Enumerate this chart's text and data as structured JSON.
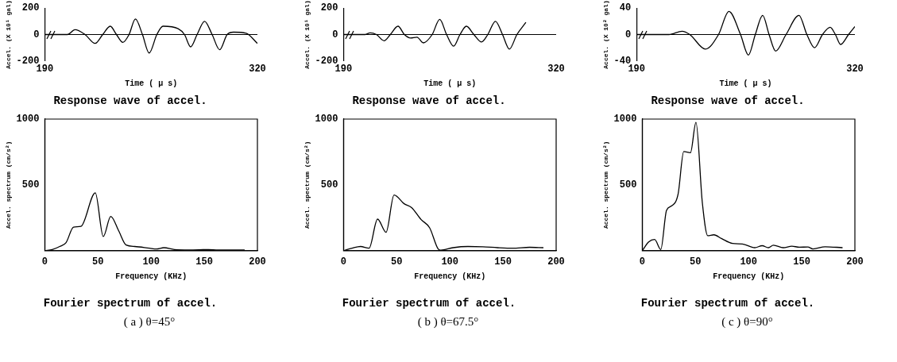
{
  "chart_data": [
    {
      "type": "line",
      "title": "Response wave of accel.",
      "xlabel": "Time ( μ s)",
      "ylabel": "Accel. (X 10¹ gal)",
      "xlim": [
        190,
        320
      ],
      "xticks": [
        190,
        320
      ],
      "ylim": [
        -200,
        200
      ],
      "yticks": [
        200,
        0,
        -200
      ],
      "marker": "none",
      "grid": false,
      "legend": false,
      "ref_lines": [
        {
          "axis": "y",
          "value": 0
        }
      ],
      "series": [
        {
          "color": "#000000",
          "x": [
            190,
            203.8,
            208.5,
            214.6,
            220.8,
            225.4,
            230,
            233.8,
            237.7,
            241.5,
            245.4,
            249.7,
            253.8,
            258.5,
            262.3,
            271.5,
            275.4,
            279.2,
            283.1,
            287.7,
            292.3,
            296.9,
            301.5,
            305.4,
            313.1,
            320
          ],
          "values": [
            0,
            0,
            37,
            0,
            -67,
            0,
            63,
            0,
            -59,
            0,
            118,
            0,
            -140,
            0,
            63,
            44,
            0,
            -93,
            0,
            100,
            0,
            -115,
            0,
            18,
            10,
            -67
          ]
        }
      ]
    },
    {
      "type": "line",
      "title": "Response wave of accel.",
      "xlabel": "Time ( μ s)",
      "ylabel": "Accel. (X 10¹ gal)",
      "xlim": [
        190,
        320
      ],
      "xticks": [
        190,
        320
      ],
      "ylim": [
        -200,
        200
      ],
      "yticks": [
        200,
        0,
        -200
      ],
      "marker": "none",
      "grid": false,
      "legend": false,
      "ref_lines": [
        {
          "axis": "y",
          "value": 0
        }
      ],
      "series": [
        {
          "color": "#000000",
          "x": [
            190,
            203.2,
            206.3,
            210.1,
            214.8,
            218.6,
            223.3,
            227.2,
            231,
            234.9,
            238.8,
            244.2,
            248.8,
            253,
            257.3,
            261.2,
            265.1,
            269.7,
            274.4,
            278.2,
            282.9,
            287.2,
            291.4,
            296,
            301.5
          ],
          "values": [
            0,
            0,
            13,
            0,
            -47,
            0,
            63,
            0,
            -26,
            -20,
            -63,
            0,
            115,
            0,
            -88,
            0,
            63,
            0,
            -56,
            0,
            100,
            0,
            -110,
            0,
            92
          ]
        }
      ]
    },
    {
      "type": "line",
      "title": "Response wave of accel.",
      "xlabel": "Time ( μ s)",
      "ylabel": "Accel. (X 10² gal)",
      "xlim": [
        190,
        320
      ],
      "xticks": [
        190,
        320
      ],
      "ylim": [
        -40,
        40
      ],
      "yticks": [
        40,
        0,
        -40
      ],
      "marker": "none",
      "grid": false,
      "legend": false,
      "ref_lines": [
        {
          "axis": "y",
          "value": 0
        }
      ],
      "series": [
        {
          "color": "#000000",
          "x": [
            190,
            209.3,
            217.1,
            221.7,
            231,
            238.8,
            245,
            251.9,
            256.6,
            260.7,
            265.1,
            268.9,
            272.8,
            279,
            286.7,
            291.4,
            296,
            300.7,
            305.3,
            308.4,
            311.5,
            316.2,
            320
          ],
          "values": [
            0,
            0,
            5,
            0,
            -22,
            0,
            35,
            0,
            -31,
            0,
            29,
            0,
            -25,
            0,
            29,
            0,
            -20,
            0,
            11,
            0,
            -15,
            0,
            12
          ]
        }
      ]
    },
    {
      "type": "line",
      "title": "Fourier spectrum of accel.",
      "xlabel": "Frequency (KHz)",
      "ylabel": "Accel. spectrum (cm/s²)",
      "xlim": [
        0,
        200
      ],
      "xticks": [
        0,
        50,
        100,
        150,
        200
      ],
      "ylim": [
        0,
        1000
      ],
      "yticks": [
        500,
        1000
      ],
      "marker": "none",
      "grid": false,
      "legend": false,
      "annotations": [
        "( a )   θ=45°"
      ],
      "series": [
        {
          "color": "#000000",
          "x": [
            0,
            7,
            14,
            20,
            27,
            34,
            47.5,
            55,
            62,
            69.5,
            76.5,
            84.6,
            98.5,
            105,
            112,
            122,
            135.6,
            154,
            163,
            188
          ],
          "values": [
            0,
            9,
            32,
            62,
            179,
            185,
            440,
            108,
            260,
            151,
            43,
            32,
            19,
            13,
            23,
            9,
            6,
            9,
            6,
            6
          ]
        }
      ]
    },
    {
      "type": "line",
      "title": "Fourier spectrum of accel.",
      "xlabel": "Frequency (KHz)",
      "ylabel": "Accel. spectrum (cm/s²)",
      "xlim": [
        0,
        200
      ],
      "xticks": [
        0,
        50,
        100,
        150,
        200
      ],
      "ylim": [
        0,
        1000
      ],
      "yticks": [
        500,
        1000
      ],
      "marker": "none",
      "grid": false,
      "legend": false,
      "annotations": [
        "( b )   θ=67.5°"
      ],
      "series": [
        {
          "color": "#000000",
          "x": [
            0,
            8,
            16,
            24,
            32,
            40,
            47.5,
            57,
            64,
            73,
            81,
            89,
            91.5,
            103,
            117,
            131,
            145,
            159,
            175,
            188
          ],
          "values": [
            0,
            19,
            32,
            19,
            240,
            140,
            423,
            357,
            328,
            236,
            174,
            13,
            4,
            23,
            32,
            30,
            23,
            19,
            26,
            23
          ]
        }
      ]
    },
    {
      "type": "line",
      "title": "Fourier spectrum of accel.",
      "xlabel": "Frequency (KHz)",
      "ylabel": "Accel. spectrum (cm/s²)",
      "xlim": [
        0,
        200
      ],
      "xticks": [
        0,
        50,
        100,
        150,
        200
      ],
      "ylim": [
        0,
        1000
      ],
      "yticks": [
        500,
        1000
      ],
      "marker": "none",
      "grid": false,
      "legend": false,
      "annotations": [
        "( c )   θ=90°"
      ],
      "series": [
        {
          "color": "#000000",
          "x": [
            0,
            6,
            11.6,
            17.4,
            22.8,
            27.9,
            33.7,
            39,
            45.3,
            50.5,
            56.5,
            61.6,
            67.4,
            74.4,
            84.9,
            94.2,
            105.8,
            112.8,
            118.6,
            123.3,
            132.6,
            140.7,
            147.7,
            155.8,
            160.5,
            172,
            188.4
          ],
          "values": [
            0,
            66,
            85,
            9,
            307,
            342,
            431,
            753,
            744,
            975,
            364,
            114,
            121,
            93,
            55,
            51,
            23,
            38,
            23,
            42,
            23,
            34,
            27,
            28,
            13,
            30,
            23
          ]
        }
      ]
    }
  ]
}
